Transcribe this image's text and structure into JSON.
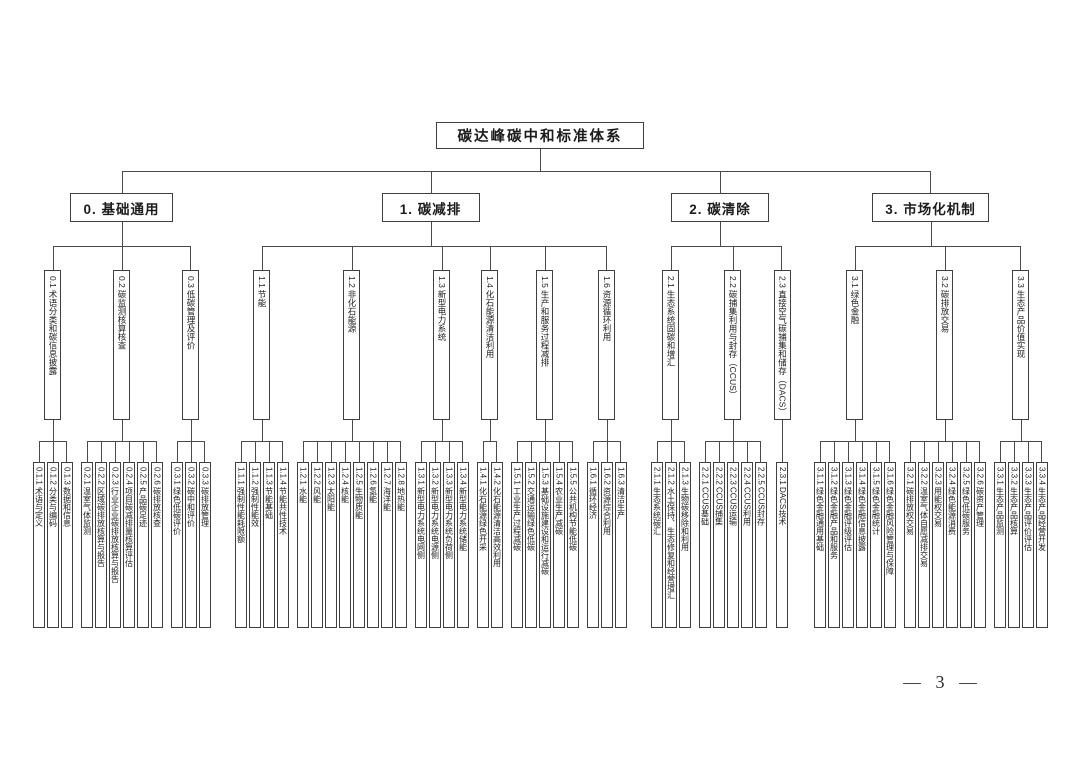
{
  "page_number": "— 3 —",
  "colors": {
    "line": "#4a4a4a",
    "box_border": "#3f3f3f",
    "background": "#ffffff"
  },
  "tree": {
    "root": "碳达峰碳中和标准体系",
    "branches": [
      {
        "label": "0. 基础通用",
        "children": [
          {
            "label": "0.1 术语分类和碳信息披露",
            "children": [
              "0.1.1 术语与定义",
              "0.1.2 分类与编码",
              "0.1.3 数据和信息"
            ]
          },
          {
            "label": "0.2 碳监测核算核查",
            "children": [
              "0.2.1 温室气体监测",
              "0.2.2 区域碳排放核算与报告",
              "0.2.3 行业企业碳排放核算与报告",
              "0.2.4 项目碳减排量核算评估",
              "0.2.5 产品碳足迹",
              "0.2.6 碳排放核查"
            ]
          },
          {
            "label": "0.3 低碳管理及评价",
            "children": [
              "0.3.1 绿色低碳评价",
              "0.3.2 碳中和评价",
              "0.3.3 碳排放管理"
            ]
          }
        ]
      },
      {
        "label": "1. 碳减排",
        "children": [
          {
            "label": "1.1 节能",
            "children": [
              "1.1.1 强制性能耗限额",
              "1.1.2 强制性能效",
              "1.1.3 节能基础",
              "1.1.4 节能共性技术"
            ]
          },
          {
            "label": "1.2 非化石能源",
            "children": [
              "1.2.1 水能",
              "1.2.2 风能",
              "1.2.3 太阳能",
              "1.2.4 核能",
              "1.2.5 生物质能",
              "1.2.6 氢能",
              "1.2.7 海洋能",
              "1.2.8 地热能"
            ]
          },
          {
            "label": "1.3 新型电力系统",
            "children": [
              "1.3.1 新型电力系统电网侧",
              "1.3.2 新型电力系统电源侧",
              "1.3.3 新型电力系统负荷侧",
              "1.3.4 新型电力系统储能"
            ]
          },
          {
            "label": "1.4 化石能源清洁利用",
            "children": [
              "1.4.1 化石能源绿色开采",
              "1.4.2 化石能源清洁高效利用"
            ]
          },
          {
            "label": "1.5 生产和服务过程减排",
            "children": [
              "1.5.1 工业生产过程减碳",
              "1.5.2 交通运输绿色低碳",
              "1.5.3 基础设施建设和运行减碳",
              "1.5.4 农业生产减碳",
              "1.5.5 公共机构节能低碳"
            ]
          },
          {
            "label": "1.6 资源循环利用",
            "children": [
              "1.6.1 循环经济",
              "1.6.2 资源综合利用",
              "1.6.3 清洁生产"
            ]
          }
        ]
      },
      {
        "label": "2. 碳清除",
        "children": [
          {
            "label": "2.1 生态系统固碳和增汇",
            "children": [
              "2.1.1 生态系统碳汇",
              "2.1.2 水土保持、生态修复和经营增汇",
              "2.1.3 生物碳移除和利用"
            ]
          },
          {
            "label": "2.2 碳捕集利用与封存（CCUS）",
            "children": [
              "2.2.1 CCUS基础",
              "2.2.2 CCUS捕集",
              "2.2.3 CCUS运输",
              "2.2.4 CCUS利用",
              "2.2.5 CCUS封存"
            ]
          },
          {
            "label": "2.3 直接空气碳捕集和储存（DACS）",
            "children": [
              "2.3.1 DACS技术"
            ]
          }
        ]
      },
      {
        "label": "3. 市场化机制",
        "children": [
          {
            "label": "3.1 绿色金融",
            "children": [
              "3.1.1 绿色金融通用基础",
              "3.1.2 绿色金融产品和服务",
              "3.1.3 绿色金融评级评估",
              "3.1.4 绿色金融信息披露",
              "3.1.5 绿色金融统计",
              "3.1.6 绿色金融风险管理与保障"
            ]
          },
          {
            "label": "3.2 碳排放交易",
            "children": [
              "3.2.1 碳排放权交易",
              "3.2.2 温室气体自愿减排交易",
              "3.2.3 用能权交易",
              "3.2.4 绿色能源消费",
              "3.2.5 绿色低碳服务",
              "3.2.6 碳资产管理"
            ]
          },
          {
            "label": "3.3 生态产品价值实现",
            "children": [
              "3.3.1 生态产品监测",
              "3.3.2 生态产品核算",
              "3.3.3 生态产品评价评估",
              "3.3.4 生态产品经营开发"
            ]
          }
        ]
      }
    ]
  }
}
